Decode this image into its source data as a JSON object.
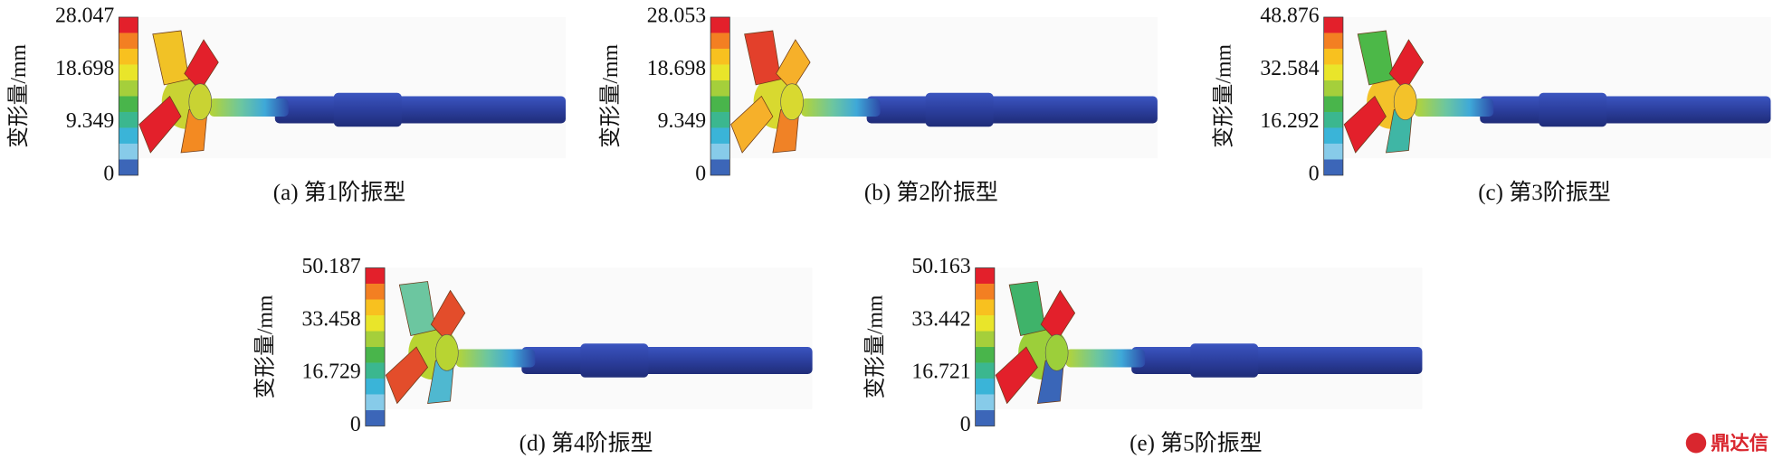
{
  "panels": [
    {
      "caption": "(a) 第1阶振型",
      "colorbar": {
        "label": "变形量/mm",
        "ticks": [
          28.047,
          18.698,
          9.349,
          0
        ]
      }
    },
    {
      "caption": "(b) 第2阶振型",
      "colorbar": {
        "label": "变形量/mm",
        "ticks": [
          28.053,
          18.698,
          9.349,
          0
        ]
      }
    },
    {
      "caption": "(c) 第3阶振型",
      "colorbar": {
        "label": "变形量/mm",
        "ticks": [
          48.876,
          32.584,
          16.292,
          0
        ]
      }
    },
    {
      "caption": "(d) 第4阶振型",
      "colorbar": {
        "label": "变形量/mm",
        "ticks": [
          50.187,
          33.458,
          16.729,
          0
        ]
      }
    },
    {
      "caption": "(e) 第5阶振型",
      "colorbar": {
        "label": "变形量/mm",
        "ticks": [
          50.163,
          33.442,
          16.721,
          0
        ]
      }
    }
  ],
  "watermark": "鼎达信"
}
